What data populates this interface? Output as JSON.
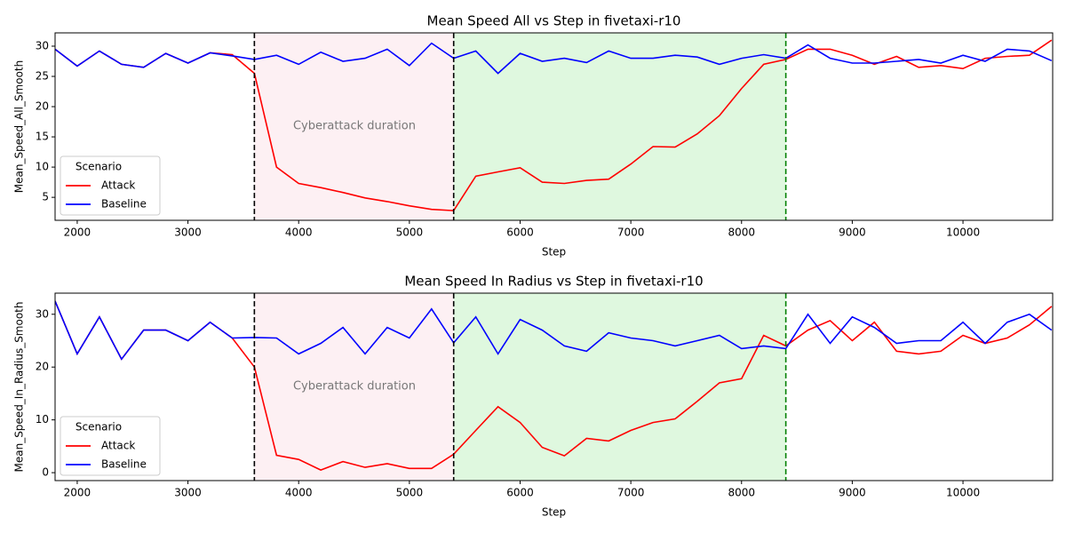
{
  "chart_data": [
    {
      "type": "line",
      "title": "Mean Speed All vs Step in fivetaxi-r10",
      "xlabel": "Step",
      "ylabel": "Mean_Speed_All_Smooth",
      "x": [
        1800,
        2000,
        2200,
        2400,
        2600,
        2800,
        3000,
        3200,
        3400,
        3600,
        3800,
        4000,
        4200,
        4400,
        4600,
        4800,
        5000,
        5200,
        5400,
        5600,
        5800,
        6000,
        6200,
        6400,
        6600,
        6800,
        7000,
        7200,
        7400,
        7600,
        7800,
        8000,
        8200,
        8400,
        8600,
        8800,
        9000,
        9200,
        9400,
        9600,
        9800,
        10000,
        10200,
        10400,
        10600,
        10800
      ],
      "series": [
        {
          "name": "Attack",
          "color": "#ff0000",
          "values": [
            29.5,
            26.7,
            29.2,
            27.0,
            26.5,
            28.8,
            27.2,
            28.9,
            28.6,
            25.5,
            10.0,
            7.3,
            6.6,
            5.8,
            4.9,
            4.3,
            3.6,
            3.0,
            2.8,
            8.5,
            9.2,
            9.9,
            7.5,
            7.3,
            7.8,
            8.0,
            10.5,
            13.4,
            13.3,
            15.5,
            18.5,
            23.0,
            27.0,
            27.8,
            29.5,
            29.5,
            28.5,
            27.0,
            28.3,
            26.5,
            26.8,
            26.3,
            28.0,
            28.3,
            28.5,
            31.0
          ]
        },
        {
          "name": "Baseline",
          "color": "#0000ff",
          "values": [
            29.5,
            26.7,
            29.2,
            27.0,
            26.5,
            28.8,
            27.2,
            28.9,
            28.4,
            27.8,
            28.5,
            27.0,
            29.0,
            27.5,
            28.0,
            29.5,
            26.8,
            30.5,
            28.0,
            29.2,
            25.5,
            28.8,
            27.5,
            28.0,
            27.3,
            29.2,
            28.0,
            28.0,
            28.5,
            28.2,
            27.0,
            28.0,
            28.6,
            28.0,
            30.2,
            28.0,
            27.2,
            27.2,
            27.5,
            27.8,
            27.2,
            28.5,
            27.5,
            29.5,
            29.2,
            27.6
          ]
        }
      ],
      "xlim": [
        1800,
        10810
      ],
      "ylim": [
        1.2,
        32.2
      ],
      "xticks": [
        2000,
        3000,
        4000,
        5000,
        6000,
        7000,
        8000,
        9000,
        10000
      ],
      "yticks": [
        5,
        10,
        15,
        20,
        25,
        30
      ],
      "spans": [
        {
          "start": 3600,
          "end": 5400,
          "color": "#fdeef2"
        },
        {
          "start": 5400,
          "end": 8400,
          "color": "#dbf7dc"
        }
      ],
      "vlines": [
        {
          "x": 3600,
          "color": "#000000"
        },
        {
          "x": 5400,
          "color": "#000000"
        },
        {
          "x": 8400,
          "color": "#008000"
        }
      ],
      "annotation": "Cyberattack duration",
      "legend_title": "Scenario",
      "legend_loc": "lower left"
    },
    {
      "type": "line",
      "title": "Mean Speed In Radius vs Step in fivetaxi-r10",
      "xlabel": "Step",
      "ylabel": "Mean_Speed_In_Radius_Smooth",
      "x": [
        1800,
        2000,
        2200,
        2400,
        2600,
        2800,
        3000,
        3200,
        3400,
        3600,
        3800,
        4000,
        4200,
        4400,
        4600,
        4800,
        5000,
        5200,
        5400,
        5600,
        5800,
        6000,
        6200,
        6400,
        6600,
        6800,
        7000,
        7200,
        7400,
        7600,
        7800,
        8000,
        8200,
        8400,
        8600,
        8800,
        9000,
        9200,
        9400,
        9600,
        9800,
        10000,
        10200,
        10400,
        10600,
        10800
      ],
      "series": [
        {
          "name": "Attack",
          "color": "#ff0000",
          "values": [
            32.5,
            22.5,
            29.5,
            21.5,
            27.0,
            27.0,
            25.0,
            28.5,
            25.5,
            20.0,
            3.3,
            2.5,
            0.5,
            2.1,
            1.0,
            1.7,
            0.8,
            0.8,
            3.5,
            8.0,
            12.5,
            9.5,
            4.8,
            3.2,
            6.5,
            6.0,
            8.0,
            9.5,
            10.2,
            13.5,
            17.0,
            17.8,
            26.0,
            24.0,
            27.0,
            28.8,
            25.0,
            28.5,
            23.0,
            22.5,
            23.0,
            26.0,
            24.5,
            25.5,
            28.0,
            31.5
          ]
        },
        {
          "name": "Baseline",
          "color": "#0000ff",
          "values": [
            32.5,
            22.5,
            29.5,
            21.5,
            27.0,
            27.0,
            25.0,
            28.5,
            25.5,
            25.6,
            25.5,
            22.5,
            24.5,
            27.5,
            22.5,
            27.5,
            25.5,
            31.0,
            24.6,
            29.5,
            22.5,
            29.0,
            27.0,
            24.0,
            23.0,
            26.5,
            25.5,
            25.0,
            24.0,
            25.0,
            26.0,
            23.5,
            24.0,
            23.5,
            30.0,
            24.5,
            29.5,
            27.5,
            24.5,
            25.0,
            25.0,
            28.5,
            24.5,
            28.5,
            30.0,
            27.0
          ]
        }
      ],
      "xlim": [
        1800,
        10810
      ],
      "ylim": [
        -1.5,
        34.0
      ],
      "xticks": [
        2000,
        3000,
        4000,
        5000,
        6000,
        7000,
        8000,
        9000,
        10000
      ],
      "yticks": [
        0,
        10,
        20,
        30
      ],
      "spans": [
        {
          "start": 3600,
          "end": 5400,
          "color": "#fdeef2"
        },
        {
          "start": 5400,
          "end": 8400,
          "color": "#dbf7dc"
        }
      ],
      "vlines": [
        {
          "x": 3600,
          "color": "#000000"
        },
        {
          "x": 5400,
          "color": "#000000"
        },
        {
          "x": 8400,
          "color": "#008000"
        }
      ],
      "annotation": "Cyberattack duration",
      "legend_title": "Scenario",
      "legend_loc": "lower left"
    }
  ]
}
